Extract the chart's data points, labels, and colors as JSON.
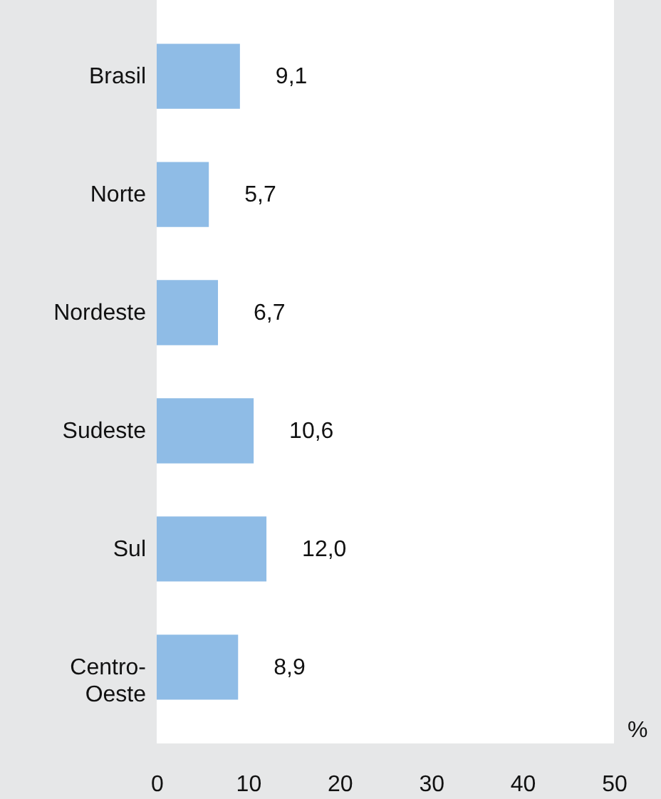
{
  "chart_data": {
    "type": "bar",
    "orientation": "horizontal",
    "xlabel": "%",
    "categories": [
      "Brasil",
      "Norte",
      "Nordeste",
      "Sudeste",
      "Sul",
      "Centro-Oeste"
    ],
    "values": [
      9.1,
      5.7,
      6.7,
      10.6,
      12.0,
      8.9
    ],
    "value_labels": [
      "9,1",
      "5,7",
      "6,7",
      "10,6",
      "12,0",
      "8,9"
    ],
    "color": "#8fbce6",
    "xlim": [
      0,
      50
    ],
    "xticks": [
      0,
      10,
      20,
      30,
      40,
      50
    ],
    "grid": false
  }
}
